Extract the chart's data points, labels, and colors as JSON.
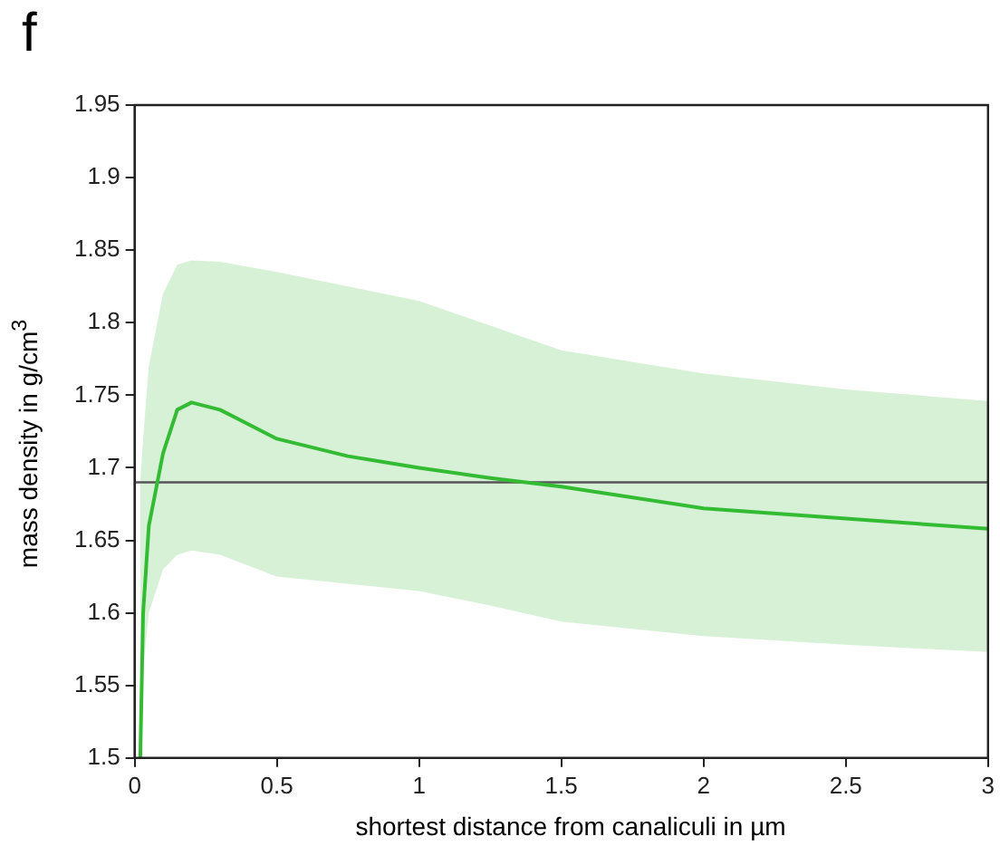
{
  "chart_data": {
    "type": "line",
    "annotations": [
      "f"
    ],
    "xlabel": "shortest distance from canaliculi in µm",
    "ylabel": "mass density in g/cm$^{3}$",
    "x": [
      0.02,
      0.03,
      0.05,
      0.1,
      0.15,
      0.2,
      0.3,
      0.5,
      0.75,
      1,
      1.25,
      1.5,
      2,
      2.5,
      3
    ],
    "series": [
      {
        "color": "#33bb33",
        "values": [
          1.5,
          1.6,
          1.66,
          1.71,
          1.74,
          1.745,
          1.74,
          1.72,
          1.708,
          1.7,
          1.693,
          1.687,
          1.672,
          1.665,
          1.658
        ],
        "lower": [
          1.5,
          1.56,
          1.6,
          1.63,
          1.64,
          1.643,
          1.64,
          1.625,
          1.62,
          1.615,
          1.605,
          1.594,
          1.584,
          1.578,
          1.573
        ],
        "upper": [
          1.69,
          1.72,
          1.77,
          1.82,
          1.84,
          1.843,
          1.842,
          1.835,
          1.825,
          1.815,
          1.798,
          1.781,
          1.765,
          1.754,
          1.746
        ]
      }
    ],
    "ref_lines": [
      {
        "axis": "y",
        "value": 1.69,
        "color": "#555555"
      }
    ],
    "xlim": [
      0,
      3
    ],
    "xticks": [
      0,
      0.5,
      1,
      1.5,
      2,
      2.5,
      3
    ],
    "ylim": [
      1.5,
      1.95
    ],
    "yticks": [
      1.5,
      1.55,
      1.6,
      1.65,
      1.7,
      1.75,
      1.8,
      1.85,
      1.9,
      1.95
    ],
    "grid": false,
    "legend": false,
    "marker": "none",
    "line_style": "solid"
  }
}
